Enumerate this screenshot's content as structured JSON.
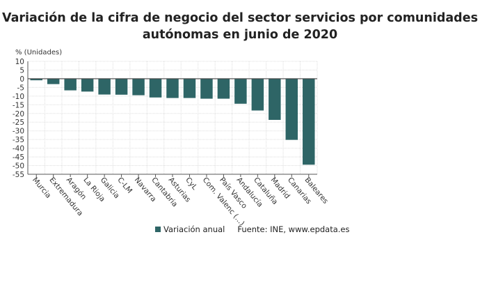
{
  "chart_data": {
    "type": "bar",
    "title": "Variación de la cifra de negocio del sector servicios por comunidades autónomas en junio de 2020",
    "ylabel": "% (Unidades)",
    "xlabel": "",
    "ylim": [
      -55,
      10
    ],
    "yticks": [
      10,
      5,
      0,
      -5,
      -10,
      -15,
      -20,
      -25,
      -30,
      -35,
      -40,
      -45,
      -50,
      -55
    ],
    "grid": true,
    "legend_position": "bottom",
    "categories": [
      "Murcia",
      "Extremadura",
      "Aragón",
      "La Rioja",
      "Galicia",
      "C-LM",
      "Navarra",
      "Cantabria",
      "Asturias",
      "CyL",
      "Com. Valenc (...)",
      "País Vasco",
      "Andalucía",
      "Cataluña",
      "Madrid",
      "Canarias",
      "Baleares"
    ],
    "series": [
      {
        "name": "Variación anual",
        "color": "#2e6566",
        "values": [
          -0.9,
          -3.1,
          -6.7,
          -7.4,
          -9.1,
          -9.2,
          -9.5,
          -10.8,
          -11.1,
          -11.1,
          -11.5,
          -11.5,
          -14.4,
          -18.3,
          -23.7,
          -35.2,
          -49.5
        ]
      }
    ],
    "source": "Fuente: INE, www.epdata.es"
  }
}
